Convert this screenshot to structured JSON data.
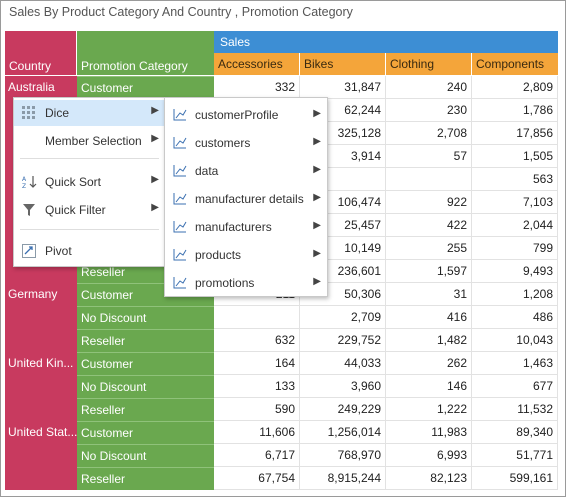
{
  "title": "Sales By Product Category And Country , Promotion Category",
  "headers": {
    "country": "Country",
    "promotion": "Promotion Category",
    "measure": "Sales",
    "categories": [
      "Accessories",
      "Bikes",
      "Clothing",
      "Components"
    ]
  },
  "rows": [
    {
      "country": "Australia",
      "promo": "Customer",
      "v": [
        "332",
        "31,847",
        "240",
        "2,809"
      ]
    },
    {
      "country": "",
      "promo": "",
      "v": [
        "",
        "62,244",
        "230",
        "1,786"
      ]
    },
    {
      "country": "",
      "promo": "",
      "v": [
        "",
        "325,128",
        "2,708",
        "17,856"
      ]
    },
    {
      "country": "",
      "promo": "",
      "v": [
        "",
        "3,914",
        "57",
        "1,505"
      ]
    },
    {
      "country": "",
      "promo": "",
      "v": [
        "",
        "",
        "",
        "563"
      ]
    },
    {
      "country": "",
      "promo": "",
      "v": [
        "",
        "106,474",
        "922",
        "7,103"
      ]
    },
    {
      "country": "",
      "promo": "",
      "v": [
        "",
        "25,457",
        "422",
        "2,044"
      ]
    },
    {
      "country": "",
      "promo": "",
      "v": [
        "",
        "10,149",
        "255",
        "799"
      ]
    },
    {
      "country": "",
      "promo": "Reseller",
      "v": [
        "",
        "236,601",
        "1,597",
        "9,493"
      ]
    },
    {
      "country": "Germany",
      "promo": "Customer",
      "v": [
        "211",
        "50,306",
        "31",
        "1,208"
      ]
    },
    {
      "country": "",
      "promo": "No Discount",
      "v": [
        "",
        "2,709",
        "416",
        "486"
      ]
    },
    {
      "country": "",
      "promo": "Reseller",
      "v": [
        "632",
        "229,752",
        "1,482",
        "10,043"
      ]
    },
    {
      "country": "United Kin...",
      "promo": "Customer",
      "v": [
        "164",
        "44,033",
        "262",
        "1,463"
      ]
    },
    {
      "country": "",
      "promo": "No Discount",
      "v": [
        "133",
        "3,960",
        "146",
        "677"
      ]
    },
    {
      "country": "",
      "promo": "Reseller",
      "v": [
        "590",
        "249,229",
        "1,222",
        "11,532"
      ]
    },
    {
      "country": "United Stat...",
      "promo": "Customer",
      "v": [
        "11,606",
        "1,256,014",
        "11,983",
        "89,340"
      ]
    },
    {
      "country": "",
      "promo": "No Discount",
      "v": [
        "6,717",
        "768,970",
        "6,993",
        "51,771"
      ]
    },
    {
      "country": "",
      "promo": "Reseller",
      "v": [
        "67,754",
        "8,915,244",
        "82,123",
        "599,161"
      ]
    }
  ],
  "menu": {
    "items": [
      {
        "label": "Dice",
        "icon": "dice-icon",
        "has_sub": true
      },
      {
        "label": "Member Selection",
        "icon": "",
        "has_sub": true
      },
      {
        "label": "Quick Sort",
        "icon": "sort-az-icon",
        "has_sub": true
      },
      {
        "label": "Quick Filter",
        "icon": "filter-icon",
        "has_sub": true
      },
      {
        "label": "Pivot",
        "icon": "pivot-icon",
        "has_sub": false
      }
    ],
    "submenu": [
      "customerProfile",
      "customers",
      "data",
      "manufacturer details",
      "manufacturers",
      "products",
      "promotions"
    ]
  },
  "colors": {
    "country": "#c83a5f",
    "promotion": "#6aa84f",
    "measure": "#3d8ed4",
    "category": "#f4a53a",
    "highlight": "#d4e8fa"
  }
}
